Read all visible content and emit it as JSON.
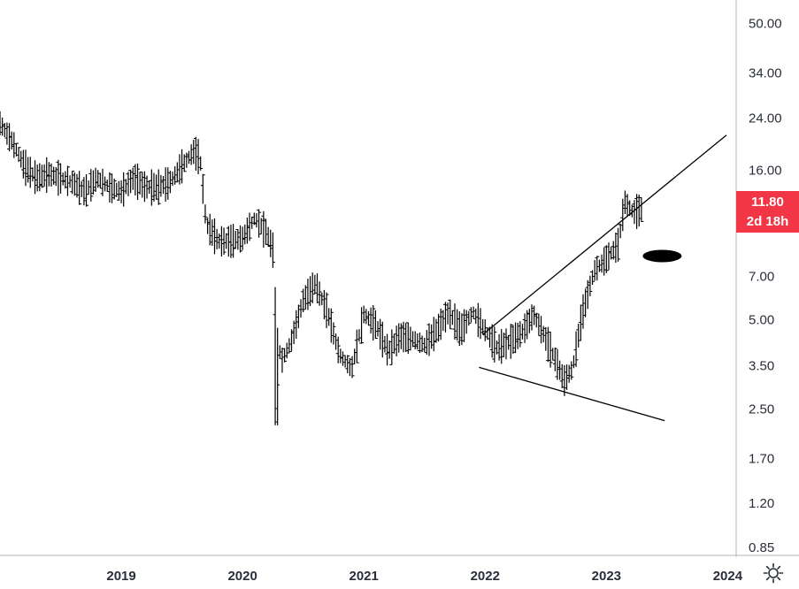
{
  "chart_data": {
    "type": "ohlc",
    "scale": "log",
    "y_ticks": [
      "50.00",
      "34.00",
      "24.00",
      "16.00",
      "7.00",
      "5.00",
      "3.50",
      "2.50",
      "1.70",
      "1.20",
      "0.85"
    ],
    "x_ticks": [
      "2019",
      "2020",
      "2021",
      "2022",
      "2023",
      "2024"
    ],
    "ylim": [
      0.8,
      60
    ],
    "xlim": [
      2018.0,
      2024.07
    ],
    "last_price": "11.80",
    "countdown": "2d 18h",
    "colors": {
      "bars": "#000000",
      "badge": "#f23645",
      "axis": "#b2b5be",
      "text": "#2a2e39"
    },
    "anchors": [
      [
        2018.0,
        23
      ],
      [
        2018.1,
        20
      ],
      [
        2018.2,
        16.5
      ],
      [
        2018.3,
        15
      ],
      [
        2018.4,
        15.5
      ],
      [
        2018.5,
        15
      ],
      [
        2018.6,
        14.5
      ],
      [
        2018.7,
        13.5
      ],
      [
        2018.8,
        15
      ],
      [
        2018.9,
        14
      ],
      [
        2019.0,
        13.5
      ],
      [
        2019.1,
        15
      ],
      [
        2019.2,
        14
      ],
      [
        2019.3,
        14
      ],
      [
        2019.4,
        14.5
      ],
      [
        2019.5,
        16.5
      ],
      [
        2019.6,
        18.5
      ],
      [
        2019.65,
        17.5
      ],
      [
        2019.7,
        10.5
      ],
      [
        2019.8,
        9.2
      ],
      [
        2019.9,
        9.2
      ],
      [
        2020.0,
        9.4
      ],
      [
        2020.1,
        11
      ],
      [
        2020.2,
        9.8
      ],
      [
        2020.25,
        8.6
      ],
      [
        2020.28,
        4.6
      ],
      [
        2020.32,
        3.6
      ],
      [
        2020.4,
        4.2
      ],
      [
        2020.5,
        5.8
      ],
      [
        2020.6,
        6.6
      ],
      [
        2020.7,
        5.3
      ],
      [
        2020.8,
        3.8
      ],
      [
        2020.9,
        3.4
      ],
      [
        2021.0,
        5.2
      ],
      [
        2021.1,
        4.8
      ],
      [
        2021.2,
        3.9
      ],
      [
        2021.3,
        4.4
      ],
      [
        2021.4,
        4.3
      ],
      [
        2021.5,
        4.1
      ],
      [
        2021.6,
        4.6
      ],
      [
        2021.7,
        5.3
      ],
      [
        2021.8,
        4.6
      ],
      [
        2021.9,
        5.3
      ],
      [
        2022.0,
        4.6
      ],
      [
        2022.1,
        4.0
      ],
      [
        2022.2,
        4.2
      ],
      [
        2022.3,
        4.5
      ],
      [
        2022.4,
        5.2
      ],
      [
        2022.5,
        4.3
      ],
      [
        2022.6,
        3.5
      ],
      [
        2022.65,
        3.1
      ],
      [
        2022.72,
        3.4
      ],
      [
        2022.8,
        5.2
      ],
      [
        2022.9,
        7.3
      ],
      [
        2023.0,
        8.0
      ],
      [
        2023.1,
        9.0
      ],
      [
        2023.15,
        12.5
      ],
      [
        2023.22,
        11.5
      ],
      [
        2023.3,
        11.8
      ]
    ],
    "trendlines": [
      {
        "name": "upper",
        "x1": 2021.98,
        "y1": 4.45,
        "x2": 2023.99,
        "y2": 21.0
      },
      {
        "name": "lower",
        "x1": 2021.95,
        "y1": 3.45,
        "x2": 2023.48,
        "y2": 2.28
      }
    ],
    "marker": {
      "x": 2023.46,
      "y": 8.2
    }
  }
}
